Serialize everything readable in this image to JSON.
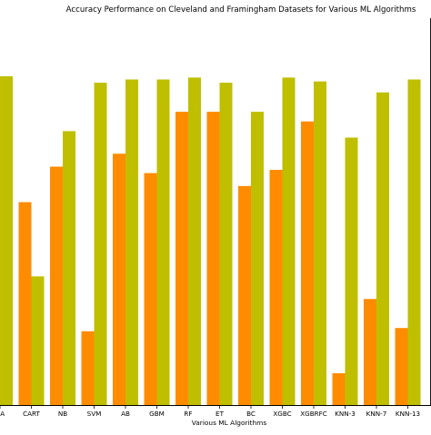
{
  "chart_data": {
    "type": "bar",
    "title": "Accuracy Performance on Cleveland and Framingham Datasets for Various ML Algorithms",
    "xlabel": "Various ML Algorithms",
    "ylabel": "",
    "categories": [
      "LDA",
      "CART",
      "NB",
      "SVM",
      "AB",
      "GBM",
      "RF",
      "ET",
      "BC",
      "XGBC",
      "XGBRFC",
      "KNN-3",
      "KNN-7",
      "KNN-13"
    ],
    "tick_labels_visible": [
      "DA",
      "CART",
      "NB",
      "SVM",
      "AB",
      "GBM",
      "RF",
      "ET",
      "BC",
      "XGBC",
      "XGBRFC",
      "KNN-3",
      "KNN-7",
      "KNN-13"
    ],
    "series": [
      {
        "values": [
          82.0,
          71.5,
          77.0,
          51.5,
          79.0,
          76.0,
          85.5,
          85.5,
          74.0,
          76.5,
          84.0,
          45.0,
          56.5,
          52.0
        ]
      },
      {
        "values": [
          91.0,
          60.0,
          82.5,
          90.0,
          90.5,
          90.5,
          90.8,
          90.0,
          85.5,
          90.8,
          90.2,
          81.5,
          88.5,
          90.5
        ]
      }
    ],
    "ylim": [
      40,
      100
    ],
    "grid": false,
    "legend": "none",
    "colors": [
      "#ff8c00",
      "#bfbf00"
    ]
  }
}
